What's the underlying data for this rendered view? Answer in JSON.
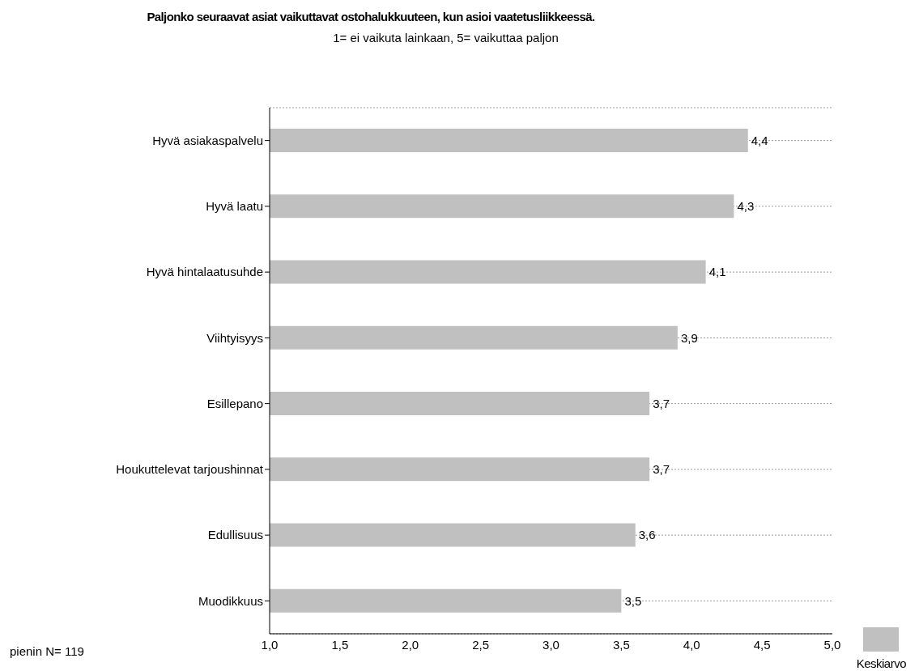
{
  "chart_data": {
    "type": "bar",
    "orientation": "horizontal",
    "title": "Paljonko seuraavat asiat vaikuttavat ostohalukkuuteen, kun asioi vaatetusliikkeessä.",
    "subtitle": "1= ei vaikuta lainkaan, 5= vaikuttaa paljon",
    "categories": [
      "Hyvä asiakaspalvelu",
      "Hyvä laatu",
      "Hyvä hintalaatusuhde",
      "Viihtyisyys",
      "Esillepano",
      "Houkuttelevat tarjoushinnat",
      "Edullisuus",
      "Muodikkuus"
    ],
    "series": [
      {
        "name": "Keskiarvo",
        "color": "#c0c0c0",
        "values": [
          4.4,
          4.3,
          4.1,
          3.9,
          3.7,
          3.7,
          3.6,
          3.5
        ],
        "value_labels": [
          "4,4",
          "4,3",
          "4,1",
          "3,9",
          "3,7",
          "3,7",
          "3,6",
          "3,5"
        ]
      }
    ],
    "xlim": [
      1,
      5
    ],
    "xticks": [
      {
        "value": 1,
        "label": "1,0"
      },
      {
        "value": 1.5,
        "label": "1,5"
      },
      {
        "value": 2,
        "label": "2,0"
      },
      {
        "value": 2.5,
        "label": "2,5"
      },
      {
        "value": 3,
        "label": "3,0"
      },
      {
        "value": 3.5,
        "label": "3,5"
      },
      {
        "value": 4,
        "label": "4,0"
      },
      {
        "value": 4.5,
        "label": "4,5"
      },
      {
        "value": 5,
        "label": "5,0"
      }
    ],
    "grid": "y",
    "legend": "bottom right",
    "annotations": [
      "pienin N= 119"
    ]
  }
}
